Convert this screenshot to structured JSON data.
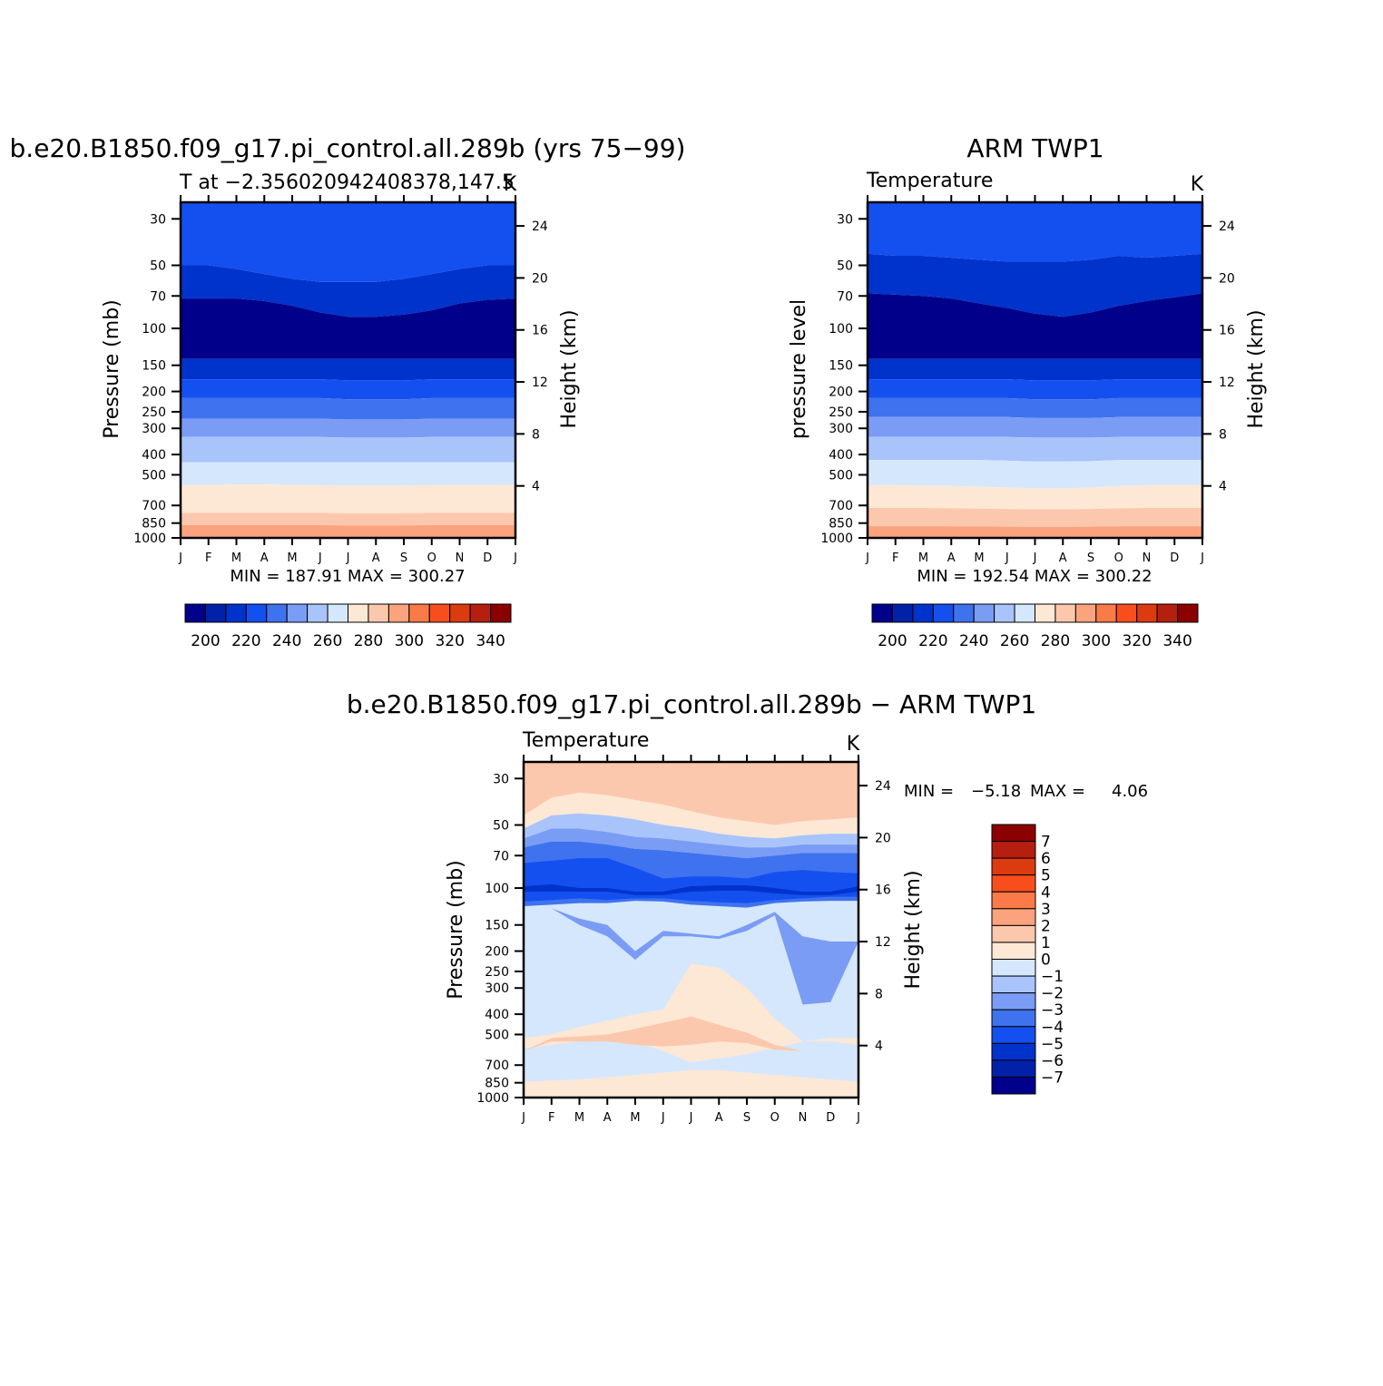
{
  "panels": {
    "model": {
      "title": "b.e20.B1850.f09_g17.pi_control.all.289b (yrs 75−99)",
      "subtitle": "T at −2.356020942408378,147.5",
      "units": "K",
      "ylabel": "Pressure (mb)",
      "y2label": "Height (km)",
      "stats": "MIN = 187.91 MAX = 300.27"
    },
    "obs": {
      "title": "ARM TWP1",
      "subtitle": "Temperature",
      "units": "K",
      "ylabel": "pressure level",
      "y2label": "Height (km)",
      "stats": "MIN = 192.54 MAX = 300.22"
    },
    "diff": {
      "title": "b.e20.B1850.f09_g17.pi_control.all.289b − ARM TWP1",
      "subtitle": "Temperature",
      "units": "K",
      "ylabel": "Pressure (mb)",
      "y2label": "Height (km)",
      "stats_min_label": "MIN =",
      "stats_min": "−5.18",
      "stats_max_label": "MAX =",
      "stats_max": "4.06"
    }
  },
  "chart_data": [
    {
      "type": "heatmap",
      "name": "model",
      "x": [
        "J",
        "F",
        "M",
        "A",
        "M",
        "J",
        "J",
        "A",
        "S",
        "O",
        "N",
        "D",
        "J"
      ],
      "y_pressure_ticks": [
        30,
        50,
        70,
        100,
        150,
        200,
        250,
        300,
        400,
        500,
        700,
        850,
        1000
      ],
      "y_height_ticks_km": [
        24,
        20,
        16,
        12,
        8,
        4
      ],
      "levels": [
        200,
        210,
        220,
        230,
        240,
        250,
        260,
        270,
        280,
        290,
        300,
        310,
        320,
        330,
        340
      ],
      "colorbar_labels": [
        200,
        220,
        240,
        260,
        280,
        300,
        320,
        340
      ],
      "min": 187.91,
      "max": 300.27,
      "contour_pressures": [
        [
          50,
          50,
          52,
          55,
          58,
          60,
          60,
          60,
          58,
          55,
          52,
          50,
          50
        ],
        [
          72,
          72,
          72,
          74,
          78,
          84,
          88,
          88,
          86,
          82,
          76,
          73,
          72
        ],
        [
          140,
          140,
          140,
          140,
          140,
          140,
          140,
          140,
          140,
          140,
          140,
          140,
          140
        ],
        [
          175,
          175,
          175,
          175,
          175,
          175,
          177,
          177,
          177,
          175,
          175,
          175,
          175
        ],
        [
          215,
          215,
          215,
          215,
          215,
          215,
          218,
          218,
          218,
          215,
          215,
          215,
          215
        ],
        [
          270,
          270,
          270,
          270,
          270,
          270,
          272,
          272,
          272,
          270,
          270,
          270,
          270
        ],
        [
          330,
          330,
          330,
          330,
          330,
          330,
          332,
          332,
          332,
          330,
          330,
          330,
          330
        ],
        [
          435,
          435,
          435,
          435,
          435,
          435,
          435,
          435,
          435,
          435,
          435,
          435,
          435
        ],
        [
          560,
          558,
          556,
          556,
          558,
          560,
          562,
          562,
          562,
          560,
          558,
          558,
          560
        ],
        [
          760,
          760,
          760,
          760,
          760,
          760,
          762,
          762,
          762,
          760,
          760,
          760,
          760
        ],
        [
          870,
          870,
          870,
          870,
          870,
          870,
          872,
          872,
          872,
          870,
          870,
          870,
          870
        ]
      ]
    },
    {
      "type": "heatmap",
      "name": "obs",
      "x": [
        "J",
        "F",
        "M",
        "A",
        "M",
        "J",
        "J",
        "A",
        "S",
        "O",
        "N",
        "D",
        "J"
      ],
      "y_pressure_ticks": [
        30,
        50,
        70,
        100,
        150,
        200,
        250,
        300,
        400,
        500,
        700,
        850,
        1000
      ],
      "y_height_ticks_km": [
        24,
        20,
        16,
        12,
        8,
        4
      ],
      "levels": [
        200,
        210,
        220,
        230,
        240,
        250,
        260,
        270,
        280,
        290,
        300,
        310,
        320,
        330,
        340
      ],
      "colorbar_labels": [
        200,
        220,
        240,
        260,
        280,
        300,
        320,
        340
      ],
      "min": 192.54,
      "max": 300.22,
      "contour_pressures": [
        [
          44,
          45,
          45,
          46,
          47,
          48,
          48,
          48,
          47,
          45,
          46,
          45,
          44
        ],
        [
          68,
          69,
          70,
          72,
          76,
          80,
          85,
          88,
          84,
          78,
          74,
          71,
          68
        ],
        [
          140,
          140,
          140,
          140,
          140,
          140,
          140,
          140,
          140,
          140,
          140,
          140,
          140
        ],
        [
          175,
          175,
          175,
          175,
          175,
          175,
          177,
          177,
          177,
          175,
          175,
          175,
          175
        ],
        [
          215,
          215,
          215,
          215,
          215,
          215,
          218,
          218,
          218,
          215,
          215,
          215,
          215
        ],
        [
          265,
          265,
          265,
          265,
          265,
          265,
          268,
          268,
          268,
          265,
          265,
          265,
          265
        ],
        [
          330,
          330,
          330,
          330,
          330,
          330,
          332,
          332,
          332,
          330,
          330,
          330,
          330
        ],
        [
          425,
          425,
          425,
          425,
          425,
          428,
          432,
          432,
          430,
          425,
          425,
          425,
          425
        ],
        [
          560,
          560,
          562,
          565,
          570,
          575,
          580,
          580,
          575,
          565,
          560,
          558,
          558
        ],
        [
          720,
          720,
          720,
          722,
          725,
          728,
          730,
          730,
          728,
          722,
          720,
          720,
          720
        ],
        [
          880,
          880,
          880,
          880,
          882,
          884,
          886,
          886,
          884,
          880,
          880,
          880,
          880
        ]
      ]
    },
    {
      "type": "heatmap",
      "name": "difference",
      "x": [
        "J",
        "F",
        "M",
        "A",
        "M",
        "J",
        "J",
        "A",
        "S",
        "O",
        "N",
        "D",
        "J"
      ],
      "y_pressure_ticks": [
        30,
        50,
        70,
        100,
        150,
        200,
        250,
        300,
        400,
        500,
        700,
        850,
        1000
      ],
      "y_height_ticks_km": [
        24,
        20,
        16,
        12,
        8,
        4
      ],
      "levels": [
        -7,
        -6,
        -5,
        -4,
        -3,
        -2,
        -1,
        0,
        1,
        2,
        3,
        4,
        5,
        6,
        7
      ],
      "colorbar_labels": [
        7,
        6,
        5,
        4,
        3,
        2,
        1,
        0,
        -1,
        -2,
        -3,
        -4,
        -5,
        -6,
        -7
      ],
      "min": -5.18,
      "max": 4.06,
      "bands": [
        {
          "value": 3,
          "top": [
            25,
            25,
            25,
            25,
            25,
            25,
            25,
            25,
            25,
            25,
            25,
            25,
            25
          ],
          "bottom": [
            30,
            27,
            28,
            28,
            27,
            30,
            32,
            34,
            36,
            38,
            33,
            30,
            32
          ]
        },
        {
          "value": 2,
          "top": [
            25,
            25,
            25,
            25,
            25,
            25,
            25,
            25,
            25,
            25,
            25,
            25,
            25
          ],
          "bottom": [
            45,
            37,
            35,
            36,
            38,
            40,
            43,
            46,
            48,
            50,
            48,
            47,
            46
          ]
        },
        {
          "value": 1,
          "top": [
            45,
            37,
            35,
            36,
            38,
            40,
            43,
            46,
            48,
            50,
            48,
            47,
            46
          ],
          "bottom": [
            52,
            45,
            44,
            45,
            47,
            50,
            52,
            55,
            57,
            58,
            56,
            55,
            55
          ]
        },
        {
          "value": -1,
          "top": [
            52,
            45,
            44,
            45,
            47,
            50,
            52,
            55,
            57,
            58,
            56,
            55,
            55
          ],
          "bottom": [
            58,
            52,
            52,
            54,
            57,
            58,
            60,
            62,
            64,
            64,
            62,
            62,
            62
          ]
        },
        {
          "value": -2,
          "top": [
            58,
            52,
            52,
            54,
            57,
            58,
            60,
            62,
            64,
            64,
            62,
            62,
            62
          ],
          "bottom": [
            64,
            60,
            60,
            62,
            65,
            66,
            68,
            70,
            72,
            70,
            68,
            68,
            68
          ]
        },
        {
          "value": -3,
          "top": [
            64,
            60,
            60,
            62,
            65,
            66,
            68,
            70,
            72,
            70,
            68,
            68,
            68
          ],
          "bottom": [
            122,
            120,
            118,
            118,
            115,
            116,
            120,
            122,
            124,
            118,
            116,
            115,
            115
          ]
        },
        {
          "value": -4,
          "top": [
            76,
            74,
            72,
            72,
            80,
            90,
            88,
            88,
            90,
            84,
            82,
            84,
            85
          ],
          "bottom": [
            116,
            114,
            112,
            114,
            112,
            112,
            115,
            117,
            118,
            114,
            112,
            110,
            110
          ]
        },
        {
          "value": -5,
          "top": [
            98,
            96,
            100,
            100,
            104,
            104,
            98,
            97,
            97,
            100,
            104,
            104,
            98
          ],
          "bottom": [
            104,
            104,
            104,
            104,
            108,
            108,
            104,
            103,
            103,
            106,
            108,
            108,
            104
          ]
        },
        {
          "value": -2,
          "top": [
            125,
            125,
            140,
            150,
            200,
            160,
            165,
            170,
            150,
            130,
            170,
            180,
            180
          ],
          "bottom": [
            125,
            125,
            150,
            170,
            220,
            170,
            170,
            175,
            160,
            135,
            360,
            350,
            180
          ]
        },
        {
          "value": 1,
          "top": [
            520,
            500,
            460,
            430,
            400,
            380,
            230,
            240,
            300,
            420,
            540,
            520,
            520
          ],
          "bottom": [
            580,
            560,
            540,
            520,
            540,
            600,
            680,
            650,
            620,
            580,
            540,
            540,
            560
          ]
        },
        {
          "value": 2,
          "top": [
            600,
            520,
            510,
            500,
            470,
            440,
            410,
            450,
            490,
            560,
            600,
            600,
            600
          ],
          "bottom": [
            600,
            540,
            540,
            540,
            560,
            570,
            560,
            540,
            550,
            590,
            600,
            600,
            600
          ]
        },
        {
          "value": 1,
          "top": [
            840,
            830,
            820,
            800,
            780,
            760,
            740,
            740,
            760,
            780,
            800,
            820,
            840
          ],
          "bottom": [
            1000,
            1000,
            1000,
            1000,
            1000,
            1000,
            1000,
            1000,
            1000,
            1000,
            1000,
            1000,
            1000
          ]
        }
      ]
    }
  ],
  "colors": {
    "temperature": [
      "#00008b",
      "#0021a8",
      "#0033cc",
      "#1450f0",
      "#3f72ee",
      "#7a9cf5",
      "#a9c4fb",
      "#d5e7fd",
      "#fde8d5",
      "#fcc8ad",
      "#fba37c",
      "#fa7a48",
      "#f84e1e",
      "#db3b0f",
      "#b51f0f",
      "#8b0000"
    ],
    "difference": [
      "#00008b",
      "#0021a8",
      "#0033cc",
      "#1450f0",
      "#3f72ee",
      "#7a9cf5",
      "#a9c4fb",
      "#d5e7fd",
      "#fde8d5",
      "#fcc8ad",
      "#fba37c",
      "#fa7a48",
      "#f84e1e",
      "#db3b0f",
      "#b51f0f",
      "#8b0000"
    ]
  }
}
